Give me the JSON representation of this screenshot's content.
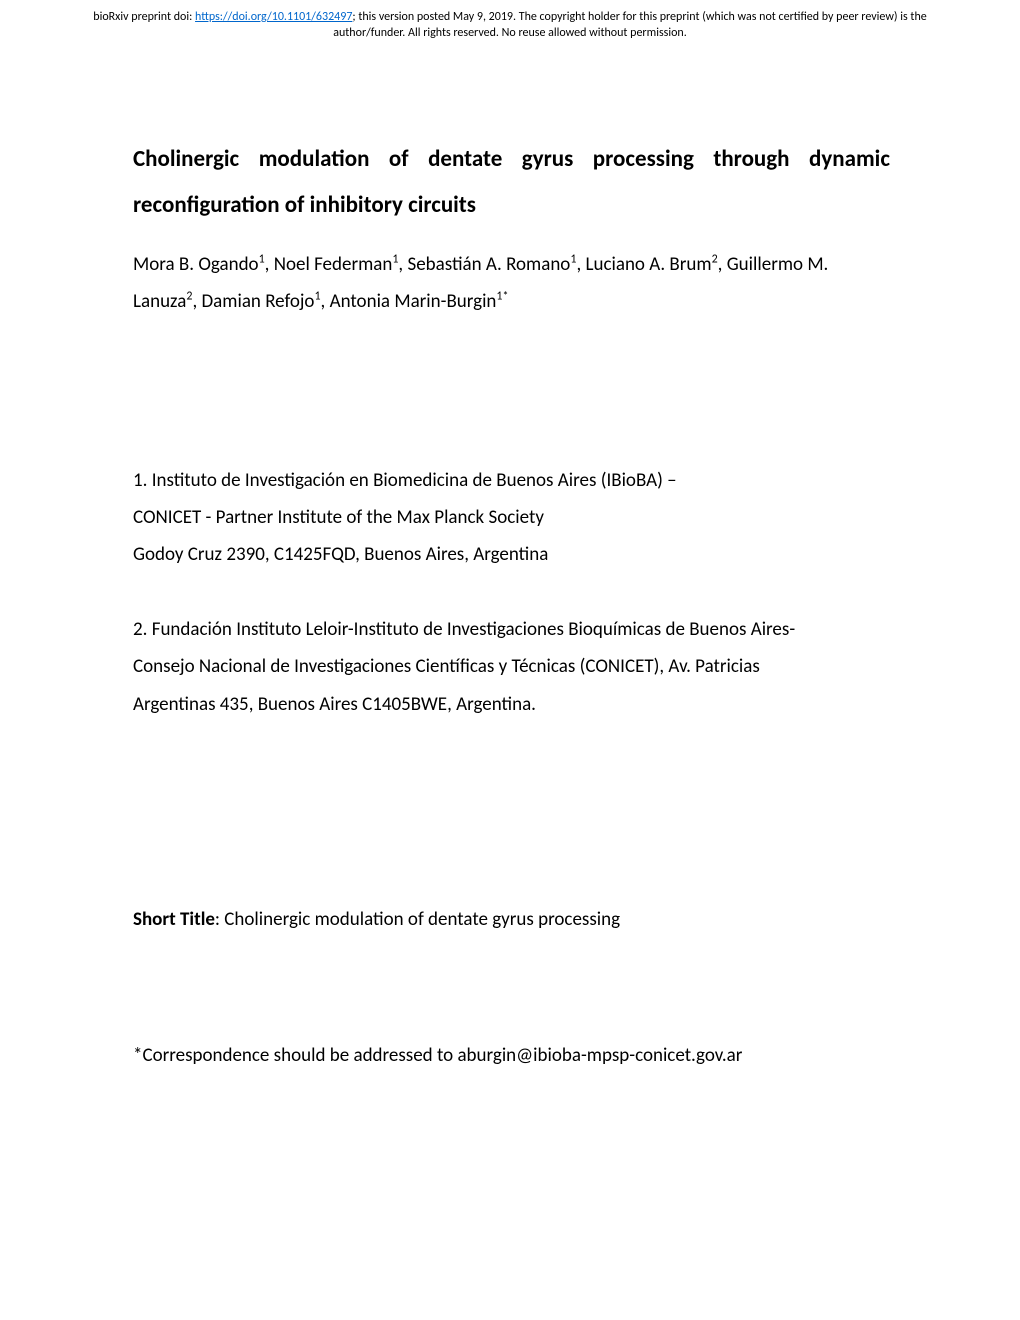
{
  "header": {
    "prefix": "bioRxiv preprint doi: ",
    "doi_link": "https://doi.org/10.1101/632497",
    "suffix": "; this version posted May 9, 2019. The copyright holder for this preprint (which was not certified by peer review) is the author/funder. All rights reserved. No reuse allowed without permission."
  },
  "title": {
    "words_line1": [
      "Cholinergic",
      "modulation",
      "of",
      "dentate",
      "gyrus",
      "processing",
      "through",
      "dynamic"
    ],
    "line2": "reconfiguration of inhibitory circuits"
  },
  "authors": {
    "parts": [
      {
        "name": "Mora B. Ogando",
        "sup": "1"
      },
      {
        "sep": ", "
      },
      {
        "name": "Noel Federman",
        "sup": "1"
      },
      {
        "sep": ", "
      },
      {
        "name": "Sebastián A. Romano",
        "sup": "1"
      },
      {
        "sep": ",  "
      },
      {
        "name": "Luciano A. Brum",
        "sup": "2"
      },
      {
        "sep": ", "
      },
      {
        "name": "Guillermo M. Lanuza",
        "sup": "2"
      },
      {
        "sep": ",  "
      },
      {
        "name": "Damian Refojo",
        "sup": "1"
      },
      {
        "sep": ", "
      },
      {
        "name": "Antonia Marin-Burgin",
        "sup": "1*"
      }
    ]
  },
  "affiliations": {
    "aff1_line1": "1. Instituto de Investigación en Biomedicina de Buenos Aires (IBioBA) –",
    "aff1_line2": "CONICET - Partner Institute of the Max Planck Society",
    "aff1_line3": "Godoy Cruz 2390, C1425FQD, Buenos Aires, Argentina",
    "aff2_line1": "2. Fundación Instituto Leloir-Instituto de Investigaciones Bioquímicas de Buenos Aires-",
    "aff2_line2": "Consejo Nacional de Investigaciones Científicas y Técnicas (CONICET), Av. Patricias",
    "aff2_line3": "Argentinas 435, Buenos Aires C1405BWE, Argentina."
  },
  "short_title": {
    "label": "Short Title",
    "value": ": Cholinergic modulation of dentate gyrus processing"
  },
  "correspondence": "*Correspondence should be addressed to aburgin@ibioba-mpsp-conicet.gov.ar"
}
